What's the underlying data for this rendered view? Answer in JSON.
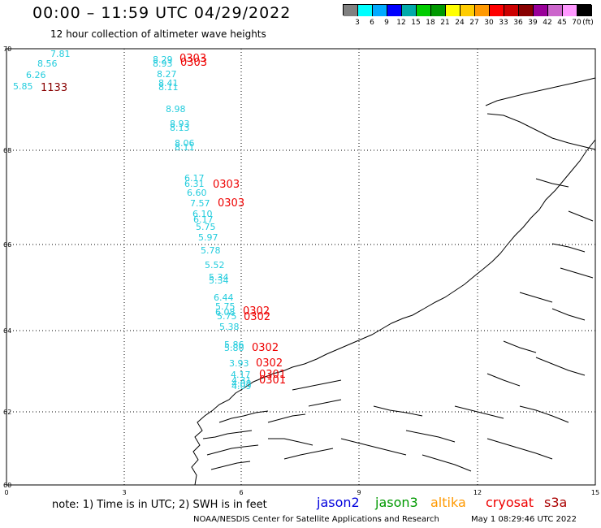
{
  "header": {
    "title": "00:00 – 11:59 UTC 04/29/2022",
    "subtitle": "12 hour collection of altimeter wave heights"
  },
  "legend": {
    "colors": [
      "#808080",
      "#00ffff",
      "#00aaff",
      "#0000ff",
      "#00aaaa",
      "#00cc00",
      "#009900",
      "#ffff00",
      "#ffcc00",
      "#ff9900",
      "#ff0000",
      "#cc0000",
      "#880000",
      "#990099",
      "#cc66cc",
      "#ff99ff",
      "#000000"
    ],
    "labels": [
      "3",
      "6",
      "9",
      "12",
      "15",
      "18",
      "21",
      "24",
      "27",
      "30",
      "33",
      "36",
      "39",
      "42",
      "45",
      "70",
      "(ft)"
    ]
  },
  "axes": {
    "y_ticks": [
      "70",
      "68",
      "66",
      "64",
      "62",
      "60"
    ],
    "x_ticks": [
      "0",
      "3",
      "6",
      "9",
      "12",
      "15"
    ]
  },
  "observations": [
    {
      "v": "7.81",
      "c": "#22ccdd"
    },
    {
      "v": "8.56",
      "c": "#22ccdd"
    },
    {
      "v": "6.26",
      "c": "#22ccdd"
    },
    {
      "v": "5.85",
      "c": "#22ccdd"
    },
    {
      "v": "1133",
      "c": "#880000"
    },
    {
      "v": "8.29",
      "c": "#22ccdd"
    },
    {
      "v": "8.93",
      "c": "#22ccdd"
    },
    {
      "v": "0303",
      "c": "#ee0000"
    },
    {
      "v": "0303",
      "c": "#ee0000"
    },
    {
      "v": "8.27",
      "c": "#22ccdd"
    },
    {
      "v": "8.41",
      "c": "#22ccdd"
    },
    {
      "v": "8.11",
      "c": "#22ccdd"
    },
    {
      "v": "8.98",
      "c": "#22ccdd"
    },
    {
      "v": "8.93",
      "c": "#22ccdd"
    },
    {
      "v": "8.13",
      "c": "#22ccdd"
    },
    {
      "v": "8.06",
      "c": "#22ccdd"
    },
    {
      "v": "8.11",
      "c": "#22ccdd"
    },
    {
      "v": "6.17",
      "c": "#22ccdd"
    },
    {
      "v": "6.31",
      "c": "#22ccdd"
    },
    {
      "v": "0303",
      "c": "#ee0000"
    },
    {
      "v": "6.60",
      "c": "#22ccdd"
    },
    {
      "v": "7.57",
      "c": "#22ccdd"
    },
    {
      "v": "0303",
      "c": "#ee0000"
    },
    {
      "v": "6.10",
      "c": "#22ccdd"
    },
    {
      "v": "6.17",
      "c": "#22ccdd"
    },
    {
      "v": "5.75",
      "c": "#22ccdd"
    },
    {
      "v": "5.97",
      "c": "#22ccdd"
    },
    {
      "v": "5.78",
      "c": "#22ccdd"
    },
    {
      "v": "5.52",
      "c": "#22ccdd"
    },
    {
      "v": "5.34",
      "c": "#22ccdd"
    },
    {
      "v": "5.34",
      "c": "#22ccdd"
    },
    {
      "v": "6.44",
      "c": "#22ccdd"
    },
    {
      "v": "5.75",
      "c": "#22ccdd"
    },
    {
      "v": "6.08",
      "c": "#22ccdd"
    },
    {
      "v": "0302",
      "c": "#ee0000"
    },
    {
      "v": "5.75",
      "c": "#22ccdd"
    },
    {
      "v": "0302",
      "c": "#ee0000"
    },
    {
      "v": "5.38",
      "c": "#22ccdd"
    },
    {
      "v": "5.86",
      "c": "#22ccdd"
    },
    {
      "v": "5.80",
      "c": "#22ccdd"
    },
    {
      "v": "0302",
      "c": "#ee0000"
    },
    {
      "v": "3.93",
      "c": "#22ccdd"
    },
    {
      "v": "0302",
      "c": "#ee0000"
    },
    {
      "v": "4.17",
      "c": "#22ccdd"
    },
    {
      "v": "0301",
      "c": "#ee0000"
    },
    {
      "v": "4.31",
      "c": "#22ccdd"
    },
    {
      "v": "4.08",
      "c": "#22ccdd"
    },
    {
      "v": "0301",
      "c": "#ee0000"
    },
    {
      "v": "4.09",
      "c": "#22ccdd"
    }
  ],
  "footer": {
    "note": "note: 1) Time is in UTC; 2) SWH is in feet",
    "satellites": [
      {
        "name": "jason2",
        "color": "#0000dd"
      },
      {
        "name": "jason3",
        "color": "#009900"
      },
      {
        "name": "altika",
        "color": "#ff9900"
      },
      {
        "name": "cryosat",
        "color": "#ee0000"
      },
      {
        "name": "s3a",
        "color": "#aa0000"
      }
    ],
    "credit": "NOAA/NESDIS Center for Satellite Applications and Research",
    "timestamp": "May  1 08:29:46 UTC 2022"
  }
}
